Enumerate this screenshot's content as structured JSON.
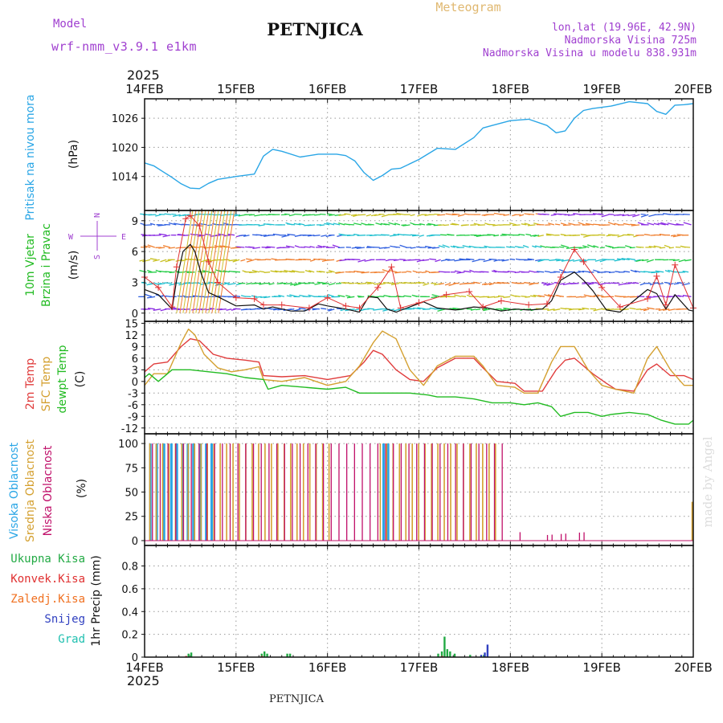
{
  "header": {
    "model_label": "Model",
    "model_name": "wrf-nmm_v3.9.1 e1km",
    "station": "PETNJICA",
    "product": "Meteogram",
    "lonlat": "lon,lat (19.96E, 42.9N)",
    "altitude": "Nadmorska Visina 725m",
    "model_altitude": "Nadmorska Visina u modelu 838.931m",
    "year": "2025",
    "footer_station": "PETNJICA",
    "watermark": "made by Angel"
  },
  "colors": {
    "pressure": "#2aa6e6",
    "wind_speed": "#111111",
    "wind_gust": "#e03030",
    "temp2m": "#e03c3c",
    "sfc_temp": "#d4a030",
    "dewpoint": "#22bb22",
    "high_cloud": "#2aa6e6",
    "mid_cloud": "#d4a030",
    "low_cloud": "#c0106a",
    "total_precip": "#22aa44",
    "conv_precip": "#e03030",
    "freezing_precip": "#f07020",
    "snow": "#3040c0",
    "hail": "#20c0b0"
  },
  "chart_data": [
    {
      "type": "line",
      "id": "pressure",
      "ylabel": "Pritisak na nivou mora",
      "unit": "(hPa)",
      "yticks": [
        1014,
        1020,
        1026
      ],
      "ylim": [
        1007,
        1030
      ],
      "xticks": [
        "14FEB",
        "15FEB",
        "16FEB",
        "17FEB",
        "18FEB",
        "19FEB",
        "20FEB"
      ],
      "grid": true,
      "series": [
        {
          "color_key": "pressure",
          "x": [
            0,
            0.1,
            0.2,
            0.3,
            0.4,
            0.5,
            0.6,
            0.7,
            0.8,
            1.0,
            1.2,
            1.3,
            1.4,
            1.5,
            1.7,
            1.9,
            2.1,
            2.2,
            2.3,
            2.4,
            2.5,
            2.6,
            2.7,
            2.8,
            3.0,
            3.2,
            3.4,
            3.6,
            3.7,
            3.8,
            4.0,
            4.2,
            4.4,
            4.5,
            4.6,
            4.7,
            4.8,
            4.9,
            5.1,
            5.3,
            5.5,
            5.6,
            5.7,
            5.8,
            5.9,
            6.0
          ],
          "y": [
            1016.8,
            1016.2,
            1015,
            1013.8,
            1012.5,
            1011.6,
            1011.5,
            1012.6,
            1013.4,
            1014,
            1014.5,
            1018.2,
            1019.6,
            1019.2,
            1018,
            1018.6,
            1018.6,
            1018.3,
            1017.2,
            1014.8,
            1013.2,
            1014.2,
            1015.5,
            1015.7,
            1017.5,
            1019.8,
            1019.6,
            1022,
            1024,
            1024.5,
            1025.5,
            1025.8,
            1024.5,
            1023,
            1023.4,
            1026,
            1027.6,
            1028,
            1028.5,
            1029.4,
            1029,
            1027.4,
            1026.8,
            1028.7,
            1028.8,
            1029
          ]
        }
      ]
    },
    {
      "type": "line",
      "id": "wind",
      "ylabel": "10m Vjetar",
      "ylabel2": "Brzina i Pravac",
      "unit": "(m/s)",
      "compass": [
        "N",
        "S",
        "E",
        "W"
      ],
      "yticks": [
        0,
        3,
        6,
        9
      ],
      "ylim": [
        -0.8,
        10
      ],
      "grid": true,
      "series": [
        {
          "name_key": "speed",
          "color_key": "wind_speed",
          "x": [
            0,
            0.15,
            0.3,
            0.35,
            0.42,
            0.5,
            0.55,
            0.62,
            0.7,
            0.8,
            1.0,
            1.2,
            1.3,
            1.4,
            1.6,
            1.75,
            1.9,
            2.0,
            2.2,
            2.35,
            2.45,
            2.55,
            2.65,
            2.75,
            2.9,
            3.05,
            3.2,
            3.4,
            3.6,
            3.75,
            3.9,
            4.05,
            4.2,
            4.35,
            4.45,
            4.55,
            4.7,
            4.8,
            4.9,
            5.05,
            5.2,
            5.35,
            5.5,
            5.6,
            5.7,
            5.8,
            5.95,
            6.0
          ],
          "y": [
            2.3,
            1.8,
            0.4,
            3.2,
            6,
            6.7,
            6,
            3.8,
            2,
            1.6,
            0.7,
            0.8,
            0.4,
            0.6,
            0.2,
            0.2,
            0.9,
            0.7,
            0.4,
            0.1,
            1.6,
            1.5,
            0.4,
            0.1,
            0.6,
            1.1,
            0.5,
            0.3,
            0.6,
            0.5,
            0.2,
            0.4,
            0.3,
            0.4,
            1.2,
            3.2,
            4,
            3.2,
            2.2,
            0.3,
            0.1,
            1.2,
            2.3,
            1.9,
            0.4,
            1.8,
            0.3,
            0.2
          ]
        },
        {
          "name_key": "gust",
          "color_key": "wind_gust",
          "x": [
            0,
            0.15,
            0.3,
            0.35,
            0.45,
            0.5,
            0.6,
            0.7,
            0.8,
            1.0,
            1.2,
            1.3,
            1.5,
            1.8,
            2.0,
            2.2,
            2.35,
            2.55,
            2.7,
            2.8,
            3.0,
            3.3,
            3.55,
            3.7,
            3.9,
            4.2,
            4.4,
            4.55,
            4.7,
            4.8,
            5.0,
            5.2,
            5.5,
            5.6,
            5.7,
            5.8,
            6.0
          ],
          "y": [
            3.5,
            2.5,
            0.6,
            4.5,
            9.2,
            9.5,
            8.5,
            5,
            3,
            1.5,
            1.4,
            0.8,
            0.8,
            0.5,
            1.5,
            0.7,
            0.5,
            2.5,
            4.5,
            0.5,
            1,
            1.8,
            2.1,
            0.6,
            1.2,
            0.8,
            0.9,
            3.5,
            6.2,
            5,
            2.5,
            0.6,
            1.4,
            3.6,
            0.8,
            4.7,
            0.5
          ]
        }
      ]
    },
    {
      "type": "line",
      "id": "temperature",
      "ylabel": "2m Temp",
      "ylabel2": "SFC Temp",
      "ylabel3": "dewpt Temp",
      "unit": "(C)",
      "yticks": [
        -12,
        -9,
        -6,
        -3,
        0,
        3,
        6,
        9,
        12,
        15
      ],
      "ylim": [
        -13.5,
        15.5
      ],
      "grid": true,
      "series": [
        {
          "color_key": "temp2m",
          "x": [
            0,
            0.1,
            0.25,
            0.4,
            0.5,
            0.6,
            0.75,
            0.9,
            1.1,
            1.25,
            1.3,
            1.5,
            1.75,
            2.0,
            2.25,
            2.4,
            2.5,
            2.6,
            2.75,
            2.9,
            3.05,
            3.2,
            3.4,
            3.6,
            3.7,
            3.85,
            4.05,
            4.15,
            4.35,
            4.5,
            4.6,
            4.7,
            4.9,
            5.05,
            5.15,
            5.35,
            5.5,
            5.6,
            5.75,
            5.9,
            6.0
          ],
          "y": [
            2.5,
            4.5,
            5,
            9,
            11,
            10.5,
            7,
            6,
            5.5,
            5,
            1.5,
            1.2,
            1.5,
            0.5,
            1.5,
            5,
            8,
            7,
            3,
            0.5,
            0,
            3.5,
            6,
            6,
            3.5,
            0,
            -0.5,
            -2.5,
            -2.5,
            3,
            5.5,
            6,
            2,
            -0.5,
            -2,
            -2.5,
            3,
            4.5,
            1.5,
            1.5,
            0.5
          ]
        },
        {
          "color_key": "sfc_temp",
          "x": [
            0,
            0.1,
            0.25,
            0.4,
            0.48,
            0.55,
            0.65,
            0.8,
            0.95,
            1.1,
            1.25,
            1.3,
            1.5,
            1.75,
            2.0,
            2.2,
            2.35,
            2.5,
            2.6,
            2.75,
            2.9,
            3.05,
            3.2,
            3.4,
            3.6,
            3.7,
            3.85,
            4.05,
            4.15,
            4.3,
            4.45,
            4.55,
            4.7,
            4.85,
            5.0,
            5.15,
            5.35,
            5.5,
            5.6,
            5.75,
            5.9,
            6.0
          ],
          "y": [
            -1,
            2,
            2,
            10,
            13.5,
            12,
            7,
            3.5,
            2.5,
            3,
            3.8,
            0.5,
            0,
            1,
            -1,
            0,
            4,
            10,
            13,
            11,
            3,
            -1,
            4,
            6.5,
            6.5,
            4,
            -1,
            -1.5,
            -3,
            -3,
            5,
            9,
            9,
            3,
            -1,
            -2,
            -3,
            6,
            9,
            3,
            -1,
            -1
          ]
        },
        {
          "color_key": "dewpoint",
          "x": [
            0,
            0.05,
            0.15,
            0.3,
            0.5,
            0.7,
            0.9,
            1.1,
            1.3,
            1.35,
            1.5,
            1.75,
            2.0,
            2.2,
            2.35,
            2.5,
            2.75,
            2.9,
            3.1,
            3.2,
            3.4,
            3.6,
            3.8,
            4.0,
            4.15,
            4.3,
            4.45,
            4.55,
            4.7,
            4.85,
            5.0,
            5.1,
            5.3,
            5.5,
            5.65,
            5.8,
            5.95,
            6.0
          ],
          "y": [
            1,
            2,
            0,
            3,
            3,
            2.5,
            2,
            1,
            0.5,
            -2,
            -1,
            -1.5,
            -2,
            -1.5,
            -3,
            -3,
            -3,
            -3,
            -3.5,
            -4,
            -4,
            -4.5,
            -5.5,
            -5.5,
            -6,
            -5.5,
            -6.5,
            -9,
            -8,
            -8,
            -9,
            -8.5,
            -8,
            -8.5,
            -10,
            -11,
            -11,
            -10
          ]
        }
      ]
    },
    {
      "type": "bar",
      "id": "clouds",
      "ylabel": "Visoka Oblacnost",
      "ylabel2": "Srednja Oblacnost",
      "ylabel3": "Niska Oblacnost",
      "unit": "(%)",
      "yticks": [
        0,
        25,
        50,
        75,
        100
      ],
      "ylim": [
        -5,
        110
      ],
      "grid": true
    },
    {
      "type": "bar",
      "id": "precip",
      "legend": [
        "Ukupna Kisa",
        "Konvek.Kisa",
        "Zaledj.Kisa",
        "Snijeg",
        "Grad"
      ],
      "unit": "1hr Precip (mm)",
      "yticks": [
        0,
        0.2,
        0.4,
        0.6,
        0.8
      ],
      "ylim": [
        0,
        0.98
      ],
      "grid": true,
      "total": {
        "x": [
          0.47,
          0.5,
          1.27,
          1.3,
          1.33,
          1.55,
          1.58,
          3.2,
          3.24,
          3.27,
          3.3,
          3.33,
          3.38,
          3.55,
          3.7
        ],
        "y": [
          0.03,
          0.04,
          0.03,
          0.05,
          0.03,
          0.03,
          0.03,
          0.03,
          0.05,
          0.18,
          0.07,
          0.05,
          0.03,
          0.02,
          0.02
        ]
      },
      "conv": {
        "x": [
          0.47,
          1.3,
          3.27
        ],
        "y": [
          0.01,
          0.01,
          0.01
        ]
      },
      "snow": {
        "x": [
          3.67,
          3.71,
          3.74
        ],
        "y": [
          0.02,
          0.04,
          0.11
        ]
      }
    }
  ]
}
